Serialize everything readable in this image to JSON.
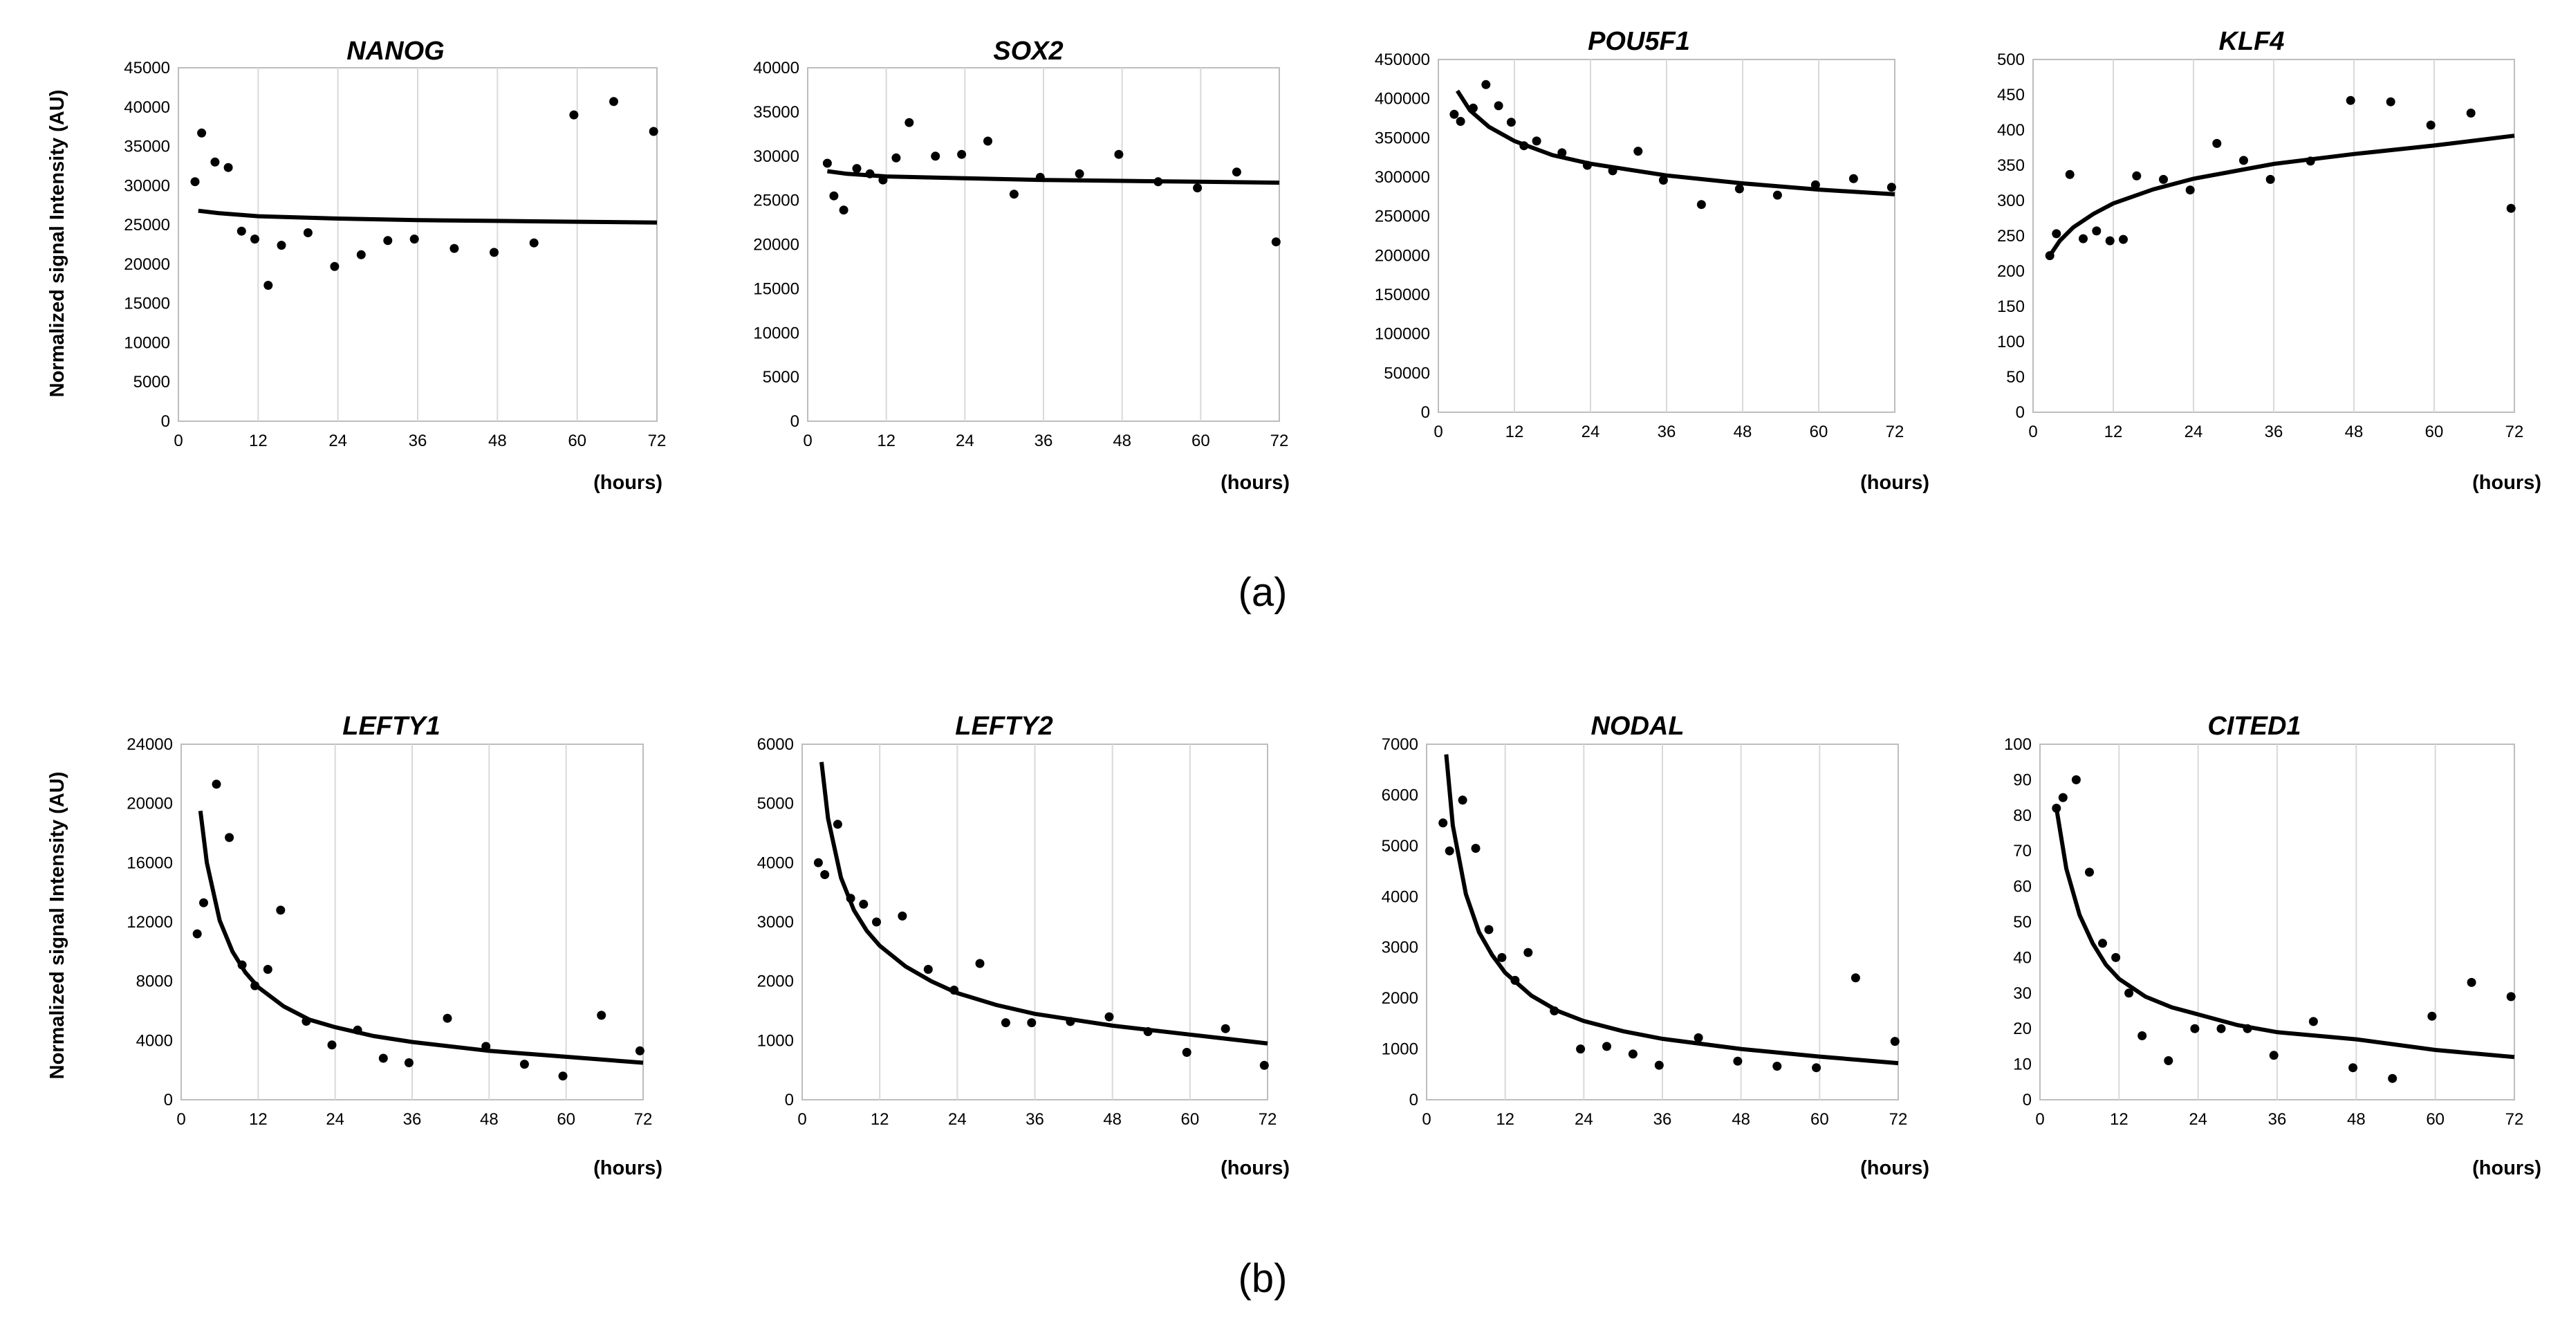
{
  "figure": {
    "caption_a": "(a)",
    "caption_b": "(b)"
  },
  "chart_data": [
    {
      "id": "nanog",
      "type": "scatter",
      "title": "NANOG",
      "ylabel": "Normalized signal Intensity (AU)",
      "x_unit": "(hours)",
      "xlim": [
        0,
        72
      ],
      "xticks": [
        0,
        12,
        24,
        36,
        48,
        60,
        72
      ],
      "ylim": [
        0,
        45000
      ],
      "yticks": [
        0,
        5000,
        10000,
        15000,
        20000,
        25000,
        30000,
        35000,
        40000,
        45000
      ],
      "fit": "log",
      "points": [
        [
          2.5,
          30500
        ],
        [
          3.5,
          36700
        ],
        [
          5.5,
          33000
        ],
        [
          7.5,
          32300
        ],
        [
          9.5,
          24200
        ],
        [
          11.5,
          23200
        ],
        [
          13.5,
          17300
        ],
        [
          15.5,
          22400
        ],
        [
          19.5,
          24000
        ],
        [
          23.5,
          19700
        ],
        [
          27.5,
          21200
        ],
        [
          31.5,
          23000
        ],
        [
          35.5,
          23200
        ],
        [
          41.5,
          22000
        ],
        [
          47.5,
          21500
        ],
        [
          53.5,
          22700
        ],
        [
          59.5,
          39000
        ],
        [
          65.5,
          40700
        ],
        [
          71.5,
          36900
        ]
      ],
      "fit_curve": [
        [
          3,
          26800
        ],
        [
          6,
          26500
        ],
        [
          12,
          26100
        ],
        [
          24,
          25800
        ],
        [
          36,
          25600
        ],
        [
          48,
          25500
        ],
        [
          60,
          25400
        ],
        [
          72,
          25300
        ]
      ]
    },
    {
      "id": "sox2",
      "type": "scatter",
      "title": "SOX2",
      "ylabel": "",
      "x_unit": "(hours)",
      "xlim": [
        0,
        72
      ],
      "xticks": [
        0,
        12,
        24,
        36,
        48,
        60,
        72
      ],
      "ylim": [
        0,
        40000
      ],
      "yticks": [
        0,
        5000,
        10000,
        15000,
        20000,
        25000,
        30000,
        35000,
        40000
      ],
      "fit": "log",
      "points": [
        [
          3,
          29200
        ],
        [
          4,
          25500
        ],
        [
          5.5,
          23900
        ],
        [
          7.5,
          28600
        ],
        [
          9.5,
          28000
        ],
        [
          11.5,
          27300
        ],
        [
          13.5,
          29800
        ],
        [
          15.5,
          33800
        ],
        [
          19.5,
          30000
        ],
        [
          23.5,
          30200
        ],
        [
          27.5,
          31700
        ],
        [
          31.5,
          25700
        ],
        [
          35.5,
          27600
        ],
        [
          41.5,
          28000
        ],
        [
          47.5,
          30200
        ],
        [
          53.5,
          27100
        ],
        [
          59.5,
          26400
        ],
        [
          65.5,
          28200
        ],
        [
          71.5,
          20300
        ]
      ],
      "fit_curve": [
        [
          3,
          28300
        ],
        [
          6,
          28000
        ],
        [
          12,
          27700
        ],
        [
          24,
          27500
        ],
        [
          36,
          27300
        ],
        [
          48,
          27200
        ],
        [
          60,
          27100
        ],
        [
          72,
          27000
        ]
      ]
    },
    {
      "id": "pou5f1",
      "type": "scatter",
      "title": "POU5F1",
      "ylabel": "",
      "x_unit": "(hours)",
      "xlim": [
        0,
        72
      ],
      "xticks": [
        0,
        12,
        24,
        36,
        48,
        60,
        72
      ],
      "ylim": [
        0,
        450000
      ],
      "yticks": [
        0,
        50000,
        100000,
        150000,
        200000,
        250000,
        300000,
        350000,
        400000,
        450000
      ],
      "fit": "log",
      "points": [
        [
          2.5,
          380000
        ],
        [
          3.5,
          371000
        ],
        [
          5.5,
          388000
        ],
        [
          7.5,
          418000
        ],
        [
          9.5,
          391000
        ],
        [
          11.5,
          370000
        ],
        [
          13.5,
          340000
        ],
        [
          15.5,
          346000
        ],
        [
          19.5,
          331000
        ],
        [
          23.5,
          315000
        ],
        [
          27.5,
          308000
        ],
        [
          31.5,
          333000
        ],
        [
          35.5,
          296000
        ],
        [
          41.5,
          265000
        ],
        [
          47.5,
          285000
        ],
        [
          53.5,
          277000
        ],
        [
          59.5,
          290000
        ],
        [
          65.5,
          298000
        ],
        [
          71.5,
          287000
        ]
      ],
      "fit_curve": [
        [
          3,
          410000
        ],
        [
          5,
          385000
        ],
        [
          8,
          364000
        ],
        [
          12,
          346000
        ],
        [
          18,
          328000
        ],
        [
          24,
          317000
        ],
        [
          36,
          302000
        ],
        [
          48,
          292000
        ],
        [
          60,
          284000
        ],
        [
          72,
          278000
        ]
      ]
    },
    {
      "id": "klf4",
      "type": "scatter",
      "title": "KLF4",
      "ylabel": "",
      "x_unit": "(hours)",
      "xlim": [
        0,
        72
      ],
      "xticks": [
        0,
        12,
        24,
        36,
        48,
        60,
        72
      ],
      "ylim": [
        0,
        500
      ],
      "yticks": [
        0,
        50,
        100,
        150,
        200,
        250,
        300,
        350,
        400,
        450,
        500
      ],
      "fit": "log",
      "points": [
        [
          2.5,
          222
        ],
        [
          3.5,
          253
        ],
        [
          5.5,
          337
        ],
        [
          7.5,
          246
        ],
        [
          9.5,
          257
        ],
        [
          11.5,
          243
        ],
        [
          13.5,
          245
        ],
        [
          15.5,
          335
        ],
        [
          19.5,
          330
        ],
        [
          23.5,
          315
        ],
        [
          27.5,
          381
        ],
        [
          31.5,
          357
        ],
        [
          35.5,
          330
        ],
        [
          41.5,
          356
        ],
        [
          47.5,
          442
        ],
        [
          53.5,
          440
        ],
        [
          59.5,
          407
        ],
        [
          65.5,
          424
        ],
        [
          71.5,
          289
        ]
      ],
      "fit_curve": [
        [
          2.5,
          222
        ],
        [
          4,
          243
        ],
        [
          6,
          262
        ],
        [
          9,
          281
        ],
        [
          12,
          296
        ],
        [
          18,
          316
        ],
        [
          24,
          331
        ],
        [
          36,
          352
        ],
        [
          48,
          366
        ],
        [
          60,
          378
        ],
        [
          72,
          392
        ]
      ]
    },
    {
      "id": "lefty1",
      "type": "scatter",
      "title": "LEFTY1",
      "ylabel": "Normalized signal Intensity (AU)",
      "x_unit": "(hours)",
      "xlim": [
        0,
        72
      ],
      "xticks": [
        0,
        12,
        24,
        36,
        48,
        60,
        72
      ],
      "ylim": [
        0,
        24000
      ],
      "yticks": [
        0,
        4000,
        8000,
        12000,
        16000,
        20000,
        24000
      ],
      "fit": "power",
      "points": [
        [
          2.5,
          11200
        ],
        [
          3.5,
          13300
        ],
        [
          5.5,
          21300
        ],
        [
          7.5,
          17700
        ],
        [
          9.5,
          9100
        ],
        [
          11.5,
          7700
        ],
        [
          13.5,
          8800
        ],
        [
          15.5,
          12800
        ],
        [
          19.5,
          5300
        ],
        [
          23.5,
          3700
        ],
        [
          27.5,
          4700
        ],
        [
          31.5,
          2800
        ],
        [
          35.5,
          2500
        ],
        [
          41.5,
          5500
        ],
        [
          47.5,
          3600
        ],
        [
          53.5,
          2400
        ],
        [
          59.5,
          1600
        ],
        [
          65.5,
          5700
        ],
        [
          71.5,
          3300
        ]
      ],
      "fit_curve": [
        [
          3,
          19500
        ],
        [
          4,
          16000
        ],
        [
          6,
          12100
        ],
        [
          8,
          10000
        ],
        [
          10,
          8600
        ],
        [
          12,
          7600
        ],
        [
          16,
          6300
        ],
        [
          20,
          5400
        ],
        [
          24,
          4900
        ],
        [
          30,
          4300
        ],
        [
          36,
          3900
        ],
        [
          48,
          3300
        ],
        [
          60,
          2900
        ],
        [
          72,
          2500
        ]
      ]
    },
    {
      "id": "lefty2",
      "type": "scatter",
      "title": "LEFTY2",
      "ylabel": "",
      "x_unit": "(hours)",
      "xlim": [
        0,
        72
      ],
      "xticks": [
        0,
        12,
        24,
        36,
        48,
        60,
        72
      ],
      "ylim": [
        0,
        6000
      ],
      "yticks": [
        0,
        1000,
        2000,
        3000,
        4000,
        5000,
        6000
      ],
      "fit": "power",
      "points": [
        [
          2.5,
          4000
        ],
        [
          3.5,
          3800
        ],
        [
          5.5,
          4650
        ],
        [
          7.5,
          3400
        ],
        [
          9.5,
          3300
        ],
        [
          11.5,
          3000
        ],
        [
          15.5,
          3100
        ],
        [
          19.5,
          2200
        ],
        [
          23.5,
          1850
        ],
        [
          27.5,
          2300
        ],
        [
          31.5,
          1300
        ],
        [
          35.5,
          1300
        ],
        [
          41.5,
          1320
        ],
        [
          47.5,
          1400
        ],
        [
          53.5,
          1150
        ],
        [
          59.5,
          800
        ],
        [
          65.5,
          1200
        ],
        [
          71.5,
          580
        ]
      ],
      "fit_curve": [
        [
          3,
          5700
        ],
        [
          4,
          4750
        ],
        [
          6,
          3750
        ],
        [
          8,
          3200
        ],
        [
          10,
          2850
        ],
        [
          12,
          2600
        ],
        [
          16,
          2250
        ],
        [
          20,
          2000
        ],
        [
          24,
          1800
        ],
        [
          30,
          1600
        ],
        [
          36,
          1450
        ],
        [
          48,
          1250
        ],
        [
          60,
          1100
        ],
        [
          72,
          950
        ]
      ]
    },
    {
      "id": "nodal",
      "type": "scatter",
      "title": "NODAL",
      "ylabel": "",
      "x_unit": "(hours)",
      "xlim": [
        0,
        72
      ],
      "xticks": [
        0,
        12,
        24,
        36,
        48,
        60,
        72
      ],
      "ylim": [
        0,
        7000
      ],
      "yticks": [
        0,
        1000,
        2000,
        3000,
        4000,
        5000,
        6000,
        7000
      ],
      "fit": "power",
      "points": [
        [
          2.5,
          5450
        ],
        [
          3.5,
          4900
        ],
        [
          5.5,
          5900
        ],
        [
          7.5,
          4950
        ],
        [
          9.5,
          3350
        ],
        [
          11.5,
          2800
        ],
        [
          13.5,
          2350
        ],
        [
          15.5,
          2900
        ],
        [
          19.5,
          1750
        ],
        [
          23.5,
          1000
        ],
        [
          27.5,
          1050
        ],
        [
          31.5,
          900
        ],
        [
          35.5,
          680
        ],
        [
          41.5,
          1220
        ],
        [
          47.5,
          760
        ],
        [
          53.5,
          660
        ],
        [
          59.5,
          630
        ],
        [
          65.5,
          2400
        ],
        [
          71.5,
          1150
        ]
      ],
      "fit_curve": [
        [
          3,
          6800
        ],
        [
          4,
          5400
        ],
        [
          6,
          4050
        ],
        [
          8,
          3300
        ],
        [
          10,
          2850
        ],
        [
          12,
          2500
        ],
        [
          16,
          2050
        ],
        [
          20,
          1750
        ],
        [
          24,
          1550
        ],
        [
          30,
          1350
        ],
        [
          36,
          1200
        ],
        [
          48,
          1000
        ],
        [
          60,
          850
        ],
        [
          72,
          720
        ]
      ]
    },
    {
      "id": "cited1",
      "type": "scatter",
      "title": "CITED1",
      "ylabel": "",
      "x_unit": "(hours)",
      "xlim": [
        0,
        72
      ],
      "xticks": [
        0,
        12,
        24,
        36,
        48,
        60,
        72
      ],
      "ylim": [
        0,
        100
      ],
      "yticks": [
        0,
        10,
        20,
        30,
        40,
        50,
        60,
        70,
        80,
        90,
        100
      ],
      "fit": "power",
      "points": [
        [
          2.5,
          82
        ],
        [
          3.5,
          85
        ],
        [
          5.5,
          90
        ],
        [
          7.5,
          64
        ],
        [
          9.5,
          44
        ],
        [
          11.5,
          40
        ],
        [
          13.5,
          30
        ],
        [
          15.5,
          18
        ],
        [
          19.5,
          11
        ],
        [
          23.5,
          20
        ],
        [
          27.5,
          20
        ],
        [
          31.5,
          20
        ],
        [
          35.5,
          12.5
        ],
        [
          41.5,
          22
        ],
        [
          47.5,
          9
        ],
        [
          53.5,
          6
        ],
        [
          59.5,
          23.5
        ],
        [
          65.5,
          33
        ],
        [
          71.5,
          29
        ]
      ],
      "fit_curve": [
        [
          2.5,
          82
        ],
        [
          4,
          65
        ],
        [
          6,
          52
        ],
        [
          8,
          44
        ],
        [
          10,
          38
        ],
        [
          12,
          34
        ],
        [
          16,
          29
        ],
        [
          20,
          26
        ],
        [
          24,
          24
        ],
        [
          30,
          21
        ],
        [
          36,
          19
        ],
        [
          48,
          17
        ],
        [
          60,
          14
        ],
        [
          72,
          12
        ]
      ]
    }
  ]
}
